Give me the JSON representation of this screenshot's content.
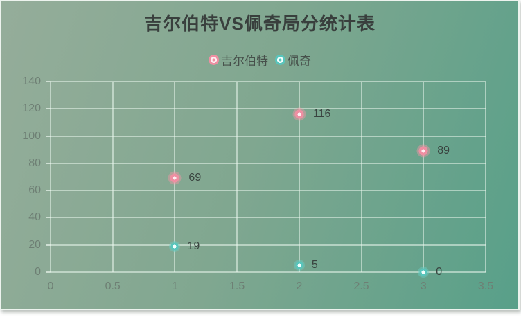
{
  "page": {
    "title": "吉尔伯特VS佩奇局分统计表"
  },
  "chart_data": {
    "type": "scatter",
    "title": "吉尔伯特VS佩奇局分统计表",
    "xlabel": "",
    "ylabel": "",
    "xlim": [
      0,
      3.5
    ],
    "ylim": [
      0,
      140
    ],
    "x_tick_values": [
      0,
      0.5,
      1,
      1.5,
      2,
      2.5,
      3,
      3.5
    ],
    "x_tick_labels": [
      "0",
      "0.5",
      "1",
      "1.5",
      "2",
      "2.5",
      "3",
      "3.5"
    ],
    "y_tick_values": [
      0,
      20,
      40,
      60,
      80,
      100,
      120,
      140
    ],
    "y_tick_labels": [
      "0",
      "20",
      "40",
      "60",
      "80",
      "100",
      "120",
      "140"
    ],
    "grid": true,
    "legend_position": "top-center",
    "data_labels_visible": true,
    "series": [
      {
        "name": "吉尔伯特",
        "color": "#ee8fa2",
        "glow": "rgba(240,150,165,0.45)",
        "center": "#fdeef1",
        "marker_size": 19,
        "core_radius": 6.5,
        "label_offset": 20,
        "points": [
          {
            "x": 1,
            "y": 69,
            "label": "69"
          },
          {
            "x": 2,
            "y": 116,
            "label": "116"
          },
          {
            "x": 3,
            "y": 89,
            "label": "89"
          }
        ]
      },
      {
        "name": "佩奇",
        "color": "#59c5bc",
        "glow": "rgba(105,206,197,0.45)",
        "center": "#f2fffd",
        "marker_size": 16,
        "core_radius": 5.5,
        "label_offset": 18,
        "points": [
          {
            "x": 1,
            "y": 19,
            "label": "19"
          },
          {
            "x": 2,
            "y": 5,
            "label": "5"
          },
          {
            "x": 3,
            "y": 0,
            "label": "0"
          }
        ]
      }
    ]
  },
  "colors": {
    "card_gradient_start": "#95ad9a",
    "card_gradient_end": "#58a089",
    "card_border": "#edf3ee",
    "grid_line": "rgba(233,245,237,0.55)",
    "axis_text": "#6e7f74",
    "data_label_text": "#39433f",
    "title_text": "#393f3d",
    "legend_text": "#47504b"
  }
}
